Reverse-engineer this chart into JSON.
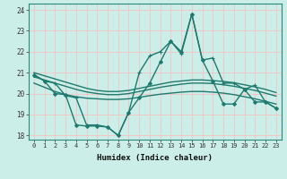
{
  "xlabel": "Humidex (Indice chaleur)",
  "ylabel": "",
  "background_color": "#cceee8",
  "grid_color": "#f0c8c8",
  "line_color": "#1e7a6e",
  "xlim": [
    -0.5,
    23.5
  ],
  "ylim": [
    17.8,
    24.3
  ],
  "yticks": [
    18,
    19,
    20,
    21,
    22,
    23,
    24
  ],
  "xticks": [
    0,
    1,
    2,
    3,
    4,
    5,
    6,
    7,
    8,
    9,
    10,
    11,
    12,
    13,
    14,
    15,
    16,
    17,
    18,
    19,
    20,
    21,
    22,
    23
  ],
  "series": [
    {
      "x": [
        0,
        1,
        2,
        3,
        4,
        5,
        6,
        7,
        8,
        9,
        10,
        11,
        12,
        13,
        14,
        15,
        16,
        17,
        18,
        19,
        20,
        21,
        22,
        23
      ],
      "y": [
        20.9,
        20.6,
        20.5,
        19.9,
        19.8,
        18.5,
        18.5,
        18.4,
        18.0,
        19.1,
        21.0,
        21.8,
        22.0,
        22.5,
        21.9,
        23.8,
        21.6,
        21.7,
        20.5,
        20.5,
        20.2,
        20.4,
        19.6,
        19.3
      ],
      "marker": "+",
      "markersize": 3.5,
      "linewidth": 1.0
    },
    {
      "x": [
        0,
        1,
        2,
        3,
        4,
        5,
        6,
        7,
        8,
        9,
        10,
        11,
        12,
        13,
        14,
        15,
        16,
        17,
        18,
        19,
        20,
        21,
        22,
        23
      ],
      "y": [
        21.0,
        20.85,
        20.7,
        20.55,
        20.4,
        20.25,
        20.15,
        20.1,
        20.1,
        20.15,
        20.25,
        20.35,
        20.45,
        20.55,
        20.6,
        20.65,
        20.65,
        20.62,
        20.58,
        20.52,
        20.42,
        20.32,
        20.2,
        20.05
      ],
      "marker": null,
      "linewidth": 1.0
    },
    {
      "x": [
        0,
        1,
        2,
        3,
        4,
        5,
        6,
        7,
        8,
        9,
        10,
        11,
        12,
        13,
        14,
        15,
        16,
        17,
        18,
        19,
        20,
        21,
        22,
        23
      ],
      "y": [
        20.8,
        20.65,
        20.5,
        20.35,
        20.2,
        20.08,
        20.0,
        19.95,
        19.95,
        20.0,
        20.1,
        20.2,
        20.3,
        20.38,
        20.45,
        20.5,
        20.5,
        20.48,
        20.42,
        20.35,
        20.25,
        20.15,
        20.02,
        19.88
      ],
      "marker": null,
      "linewidth": 1.0
    },
    {
      "x": [
        0,
        1,
        2,
        3,
        4,
        5,
        6,
        7,
        8,
        9,
        10,
        11,
        12,
        13,
        14,
        15,
        16,
        17,
        18,
        19,
        20,
        21,
        22,
        23
      ],
      "y": [
        20.5,
        20.3,
        20.1,
        19.95,
        19.85,
        19.78,
        19.75,
        19.72,
        19.72,
        19.75,
        19.82,
        19.9,
        19.97,
        20.02,
        20.07,
        20.1,
        20.1,
        20.07,
        20.02,
        19.95,
        19.85,
        19.75,
        19.63,
        19.5
      ],
      "marker": null,
      "linewidth": 1.0
    },
    {
      "x": [
        0,
        1,
        2,
        3,
        4,
        5,
        6,
        7,
        8,
        9,
        10,
        11,
        12,
        13,
        14,
        15,
        16,
        17,
        18,
        19,
        20,
        21,
        22,
        23
      ],
      "y": [
        20.9,
        20.6,
        20.0,
        19.95,
        18.5,
        18.45,
        18.45,
        18.4,
        18.0,
        19.1,
        19.8,
        20.5,
        21.5,
        22.5,
        22.0,
        23.8,
        21.6,
        20.6,
        19.5,
        19.5,
        20.2,
        19.6,
        19.6,
        19.3
      ],
      "marker": "D",
      "markersize": 2.0,
      "linewidth": 1.0
    }
  ]
}
